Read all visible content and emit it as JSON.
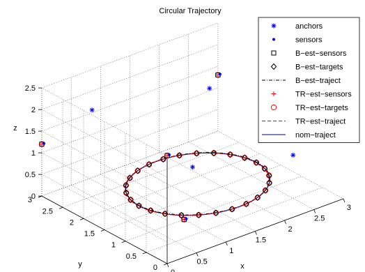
{
  "chart_data": {
    "type": "scatter",
    "title": "Circular Trajectory",
    "xlabel": "x",
    "ylabel": "y",
    "zlabel": "z",
    "xlim": [
      0,
      3
    ],
    "ylim": [
      0,
      3
    ],
    "zlim": [
      0,
      2.5
    ],
    "xticks": [
      "0",
      "0.5",
      "1",
      "1.5",
      "2",
      "2.5",
      "3"
    ],
    "yticks": [
      "0",
      "0.5",
      "1",
      "1.5",
      "2",
      "2.5",
      "3"
    ],
    "zticks": [
      "0",
      "0.5",
      "1",
      "1.5",
      "2",
      "2.5"
    ],
    "grid": true,
    "legend_position": "top-right",
    "colors": {
      "blue": "#0000ff",
      "red": "#ff0000",
      "black": "#000000",
      "navy": "#000080"
    },
    "legend": [
      {
        "label": "anchors",
        "marker": "asterisk",
        "color": "#0000ff"
      },
      {
        "label": "sensors",
        "marker": "dot",
        "color": "#0000ff"
      },
      {
        "label": "B−est−sensors",
        "marker": "square",
        "color": "#000000"
      },
      {
        "label": "B−est−targets",
        "marker": "diamond",
        "color": "#000000"
      },
      {
        "label": "B−est−traject",
        "line": "dashdot",
        "color": "#000000"
      },
      {
        "label": "TR−est−sensors",
        "marker": "plus",
        "color": "#ff0000"
      },
      {
        "label": "TR−est−targets",
        "marker": "circle",
        "color": "#ff0000"
      },
      {
        "label": "TR−est−traject",
        "line": "dashed",
        "color": "#ff0000"
      },
      {
        "label": "nom−traject",
        "line": "solid",
        "color": "#000080"
      }
    ],
    "anchors": [
      [
        0.5,
        2.5,
        2.0
      ],
      [
        2.5,
        2.5,
        1.5
      ],
      [
        2.5,
        0.5,
        1.0
      ],
      [
        1.5,
        1.5,
        0.7
      ]
    ],
    "sensors": [
      [
        0,
        3,
        1.2
      ],
      [
        3,
        3,
        1.3
      ],
      [
        1,
        1,
        0
      ],
      [
        0,
        0,
        2.5
      ]
    ],
    "trajectory": {
      "center": [
        1.8,
        1.8,
        0
      ],
      "radius": 1.0,
      "z": 0.0,
      "num_targets": 26
    }
  }
}
